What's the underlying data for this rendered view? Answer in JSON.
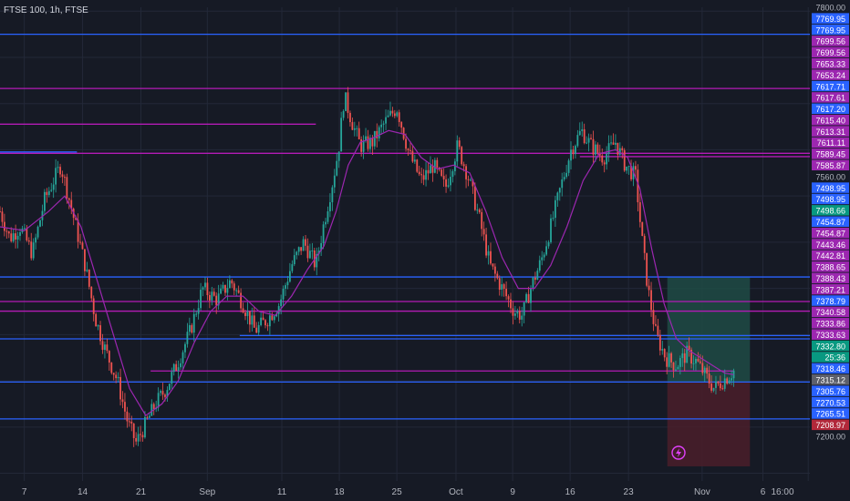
{
  "header": {
    "title": "FTSE 100, 1h, FTSE"
  },
  "colors": {
    "background": "#161a25",
    "grid": "#232838",
    "candle_up": "#26a69a",
    "candle_down": "#ef5350",
    "ma_line": "#9c27b0",
    "hline_blue": "#2962ff",
    "hline_magenta": "#b31bb5",
    "long_profit_zone": "#1e4b45",
    "long_loss_zone": "#4a1f2a",
    "axis_text": "#b2b5be"
  },
  "chart_data": {
    "type": "candlestick",
    "title": "FTSE 100, 1h, FTSE",
    "ylim": [
      7190,
      7805
    ],
    "grid": true,
    "x_ticks": [
      {
        "label": "7",
        "t": 0.03
      },
      {
        "label": "14",
        "t": 0.102
      },
      {
        "label": "21",
        "t": 0.174
      },
      {
        "label": "Sep",
        "t": 0.256
      },
      {
        "label": "11",
        "t": 0.348
      },
      {
        "label": "18",
        "t": 0.419
      },
      {
        "label": "25",
        "t": 0.49
      },
      {
        "label": "Oct",
        "t": 0.563
      },
      {
        "label": "9",
        "t": 0.633
      },
      {
        "label": "16",
        "t": 0.704
      },
      {
        "label": "23",
        "t": 0.776
      },
      {
        "label": "Nov",
        "t": 0.867
      },
      {
        "label": "6",
        "t": 0.942
      },
      {
        "label": "16:00",
        "t": 0.998
      }
    ],
    "y_ticks": [
      7800.0,
      7560.0,
      7200.0
    ],
    "price_path": [
      [
        0.0,
        7540
      ],
      [
        0.012,
        7505
      ],
      [
        0.025,
        7520
      ],
      [
        0.04,
        7485
      ],
      [
        0.055,
        7555
      ],
      [
        0.075,
        7600
      ],
      [
        0.088,
        7545
      ],
      [
        0.105,
        7470
      ],
      [
        0.118,
        7400
      ],
      [
        0.13,
        7360
      ],
      [
        0.145,
        7320
      ],
      [
        0.158,
        7265
      ],
      [
        0.168,
        7240
      ],
      [
        0.178,
        7260
      ],
      [
        0.192,
        7290
      ],
      [
        0.205,
        7310
      ],
      [
        0.22,
        7345
      ],
      [
        0.235,
        7385
      ],
      [
        0.25,
        7440
      ],
      [
        0.268,
        7425
      ],
      [
        0.285,
        7450
      ],
      [
        0.3,
        7420
      ],
      [
        0.315,
        7385
      ],
      [
        0.33,
        7400
      ],
      [
        0.345,
        7420
      ],
      [
        0.36,
        7470
      ],
      [
        0.375,
        7500
      ],
      [
        0.39,
        7470
      ],
      [
        0.4,
        7525
      ],
      [
        0.41,
        7575
      ],
      [
        0.418,
        7620
      ],
      [
        0.425,
        7690
      ],
      [
        0.435,
        7655
      ],
      [
        0.445,
        7625
      ],
      [
        0.46,
        7630
      ],
      [
        0.475,
        7655
      ],
      [
        0.49,
        7675
      ],
      [
        0.505,
        7615
      ],
      [
        0.52,
        7580
      ],
      [
        0.535,
        7600
      ],
      [
        0.55,
        7570
      ],
      [
        0.565,
        7625
      ],
      [
        0.578,
        7585
      ],
      [
        0.592,
        7530
      ],
      [
        0.605,
        7470
      ],
      [
        0.62,
        7440
      ],
      [
        0.635,
        7410
      ],
      [
        0.645,
        7405
      ],
      [
        0.655,
        7440
      ],
      [
        0.668,
        7475
      ],
      [
        0.68,
        7520
      ],
      [
        0.692,
        7570
      ],
      [
        0.705,
        7620
      ],
      [
        0.718,
        7645
      ],
      [
        0.73,
        7625
      ],
      [
        0.745,
        7610
      ],
      [
        0.76,
        7630
      ],
      [
        0.772,
        7600
      ],
      [
        0.785,
        7585
      ],
      [
        0.792,
        7510
      ],
      [
        0.8,
        7440
      ],
      [
        0.81,
        7380
      ],
      [
        0.822,
        7350
      ],
      [
        0.835,
        7340
      ],
      [
        0.848,
        7355
      ],
      [
        0.86,
        7345
      ],
      [
        0.872,
        7325
      ],
      [
        0.882,
        7310
      ],
      [
        0.892,
        7320
      ],
      [
        0.9,
        7327
      ],
      [
        0.906,
        7333
      ]
    ],
    "moving_average": [
      [
        0.0,
        7520
      ],
      [
        0.03,
        7515
      ],
      [
        0.06,
        7540
      ],
      [
        0.08,
        7560
      ],
      [
        0.1,
        7520
      ],
      [
        0.12,
        7450
      ],
      [
        0.14,
        7380
      ],
      [
        0.16,
        7310
      ],
      [
        0.18,
        7275
      ],
      [
        0.2,
        7290
      ],
      [
        0.22,
        7320
      ],
      [
        0.24,
        7370
      ],
      [
        0.26,
        7410
      ],
      [
        0.28,
        7430
      ],
      [
        0.3,
        7430
      ],
      [
        0.32,
        7410
      ],
      [
        0.34,
        7405
      ],
      [
        0.36,
        7430
      ],
      [
        0.38,
        7465
      ],
      [
        0.4,
        7495
      ],
      [
        0.415,
        7540
      ],
      [
        0.43,
        7600
      ],
      [
        0.445,
        7630
      ],
      [
        0.46,
        7635
      ],
      [
        0.48,
        7645
      ],
      [
        0.5,
        7640
      ],
      [
        0.52,
        7610
      ],
      [
        0.54,
        7595
      ],
      [
        0.56,
        7600
      ],
      [
        0.58,
        7590
      ],
      [
        0.6,
        7540
      ],
      [
        0.62,
        7480
      ],
      [
        0.64,
        7440
      ],
      [
        0.66,
        7440
      ],
      [
        0.68,
        7470
      ],
      [
        0.7,
        7520
      ],
      [
        0.72,
        7580
      ],
      [
        0.74,
        7615
      ],
      [
        0.76,
        7620
      ],
      [
        0.775,
        7610
      ],
      [
        0.79,
        7570
      ],
      [
        0.805,
        7490
      ],
      [
        0.82,
        7420
      ],
      [
        0.835,
        7375
      ],
      [
        0.85,
        7360
      ],
      [
        0.865,
        7350
      ],
      [
        0.88,
        7340
      ],
      [
        0.895,
        7330
      ],
      [
        0.906,
        7328
      ]
    ],
    "horizontal_lines": [
      {
        "value": 7769.95,
        "color": "blue",
        "x0": 0.0,
        "x1": 1.0
      },
      {
        "value": 7699.56,
        "color": "magenta",
        "x0": 0.0,
        "x1": 1.0
      },
      {
        "value": 7653.24,
        "color": "magenta",
        "x0": 0.0,
        "x1": 0.39
      },
      {
        "value": 7617.2,
        "color": "blue",
        "x0": 0.0,
        "x1": 0.095
      },
      {
        "value": 7615.4,
        "color": "magenta",
        "x0": 0.0,
        "x1": 1.0
      },
      {
        "value": 7611.11,
        "color": "magenta",
        "x0": 0.716,
        "x1": 1.0
      },
      {
        "value": 7454.87,
        "color": "blue",
        "x0": 0.0,
        "x1": 1.0
      },
      {
        "value": 7423.0,
        "color": "magenta",
        "x0": 0.0,
        "x1": 1.0
      },
      {
        "value": 7410.5,
        "color": "magenta",
        "x0": 0.0,
        "x1": 1.0
      },
      {
        "value": 7378.79,
        "color": "blue",
        "x0": 0.296,
        "x1": 1.0
      },
      {
        "value": 7374.5,
        "color": "blue",
        "x0": 0.0,
        "x1": 1.0
      },
      {
        "value": 7332.8,
        "color": "magenta",
        "x0": 0.186,
        "x1": 0.906
      },
      {
        "value": 7318.46,
        "color": "blue",
        "x0": 0.0,
        "x1": 1.0
      },
      {
        "value": 7270.53,
        "color": "blue",
        "x0": 0.0,
        "x1": 1.0
      }
    ],
    "position_tool": {
      "type": "long",
      "entry": 7318.46,
      "target": 7454.87,
      "stop": 7208.97,
      "x0": 0.824,
      "x1": 0.926
    },
    "price_labels": [
      {
        "text": "7800.00",
        "style": "plain"
      },
      {
        "text": "7769.95",
        "style": "blue"
      },
      {
        "text": "7769.95",
        "style": "blue"
      },
      {
        "text": "7699.56",
        "style": "magenta"
      },
      {
        "text": "7699.56",
        "style": "magenta"
      },
      {
        "text": "7653.33",
        "style": "magenta"
      },
      {
        "text": "7653.24",
        "style": "magenta"
      },
      {
        "text": "7617.71",
        "style": "blue"
      },
      {
        "text": "7617.61",
        "style": "magenta"
      },
      {
        "text": "7617.20",
        "style": "blue"
      },
      {
        "text": "7615.40",
        "style": "magenta"
      },
      {
        "text": "7613.31",
        "style": "magenta"
      },
      {
        "text": "7611.11",
        "style": "magenta"
      },
      {
        "text": "7589.45",
        "style": "magenta"
      },
      {
        "text": "7585.87",
        "style": "magenta"
      },
      {
        "text": "7560.00",
        "style": "plain"
      },
      {
        "text": "7498.95",
        "style": "blue"
      },
      {
        "text": "7498.95",
        "style": "blue"
      },
      {
        "text": "7498.66",
        "style": "teal"
      },
      {
        "text": "7454.87",
        "style": "blue"
      },
      {
        "text": "7454.87",
        "style": "magenta"
      },
      {
        "text": "7443.46",
        "style": "magenta"
      },
      {
        "text": "7442.81",
        "style": "magenta"
      },
      {
        "text": "7388.65",
        "style": "magenta"
      },
      {
        "text": "7388.43",
        "style": "magenta"
      },
      {
        "text": "7387.21",
        "style": "magenta"
      },
      {
        "text": "7378.79",
        "style": "blue"
      },
      {
        "text": "7340.58",
        "style": "magenta"
      },
      {
        "text": "7333.86",
        "style": "magenta"
      },
      {
        "text": "7333.63",
        "style": "magenta"
      },
      {
        "text": "7332.80",
        "style": "teal"
      },
      {
        "text": "25:36",
        "style": "teal"
      },
      {
        "text": "7318.46",
        "style": "blue"
      },
      {
        "text": "7315.12",
        "style": "gray"
      },
      {
        "text": "7305.76",
        "style": "blue"
      },
      {
        "text": "7270.53",
        "style": "blue"
      },
      {
        "text": "7265.51",
        "style": "blue"
      },
      {
        "text": "7208.97",
        "style": "red"
      },
      {
        "text": "7200.00",
        "style": "plain"
      }
    ]
  }
}
